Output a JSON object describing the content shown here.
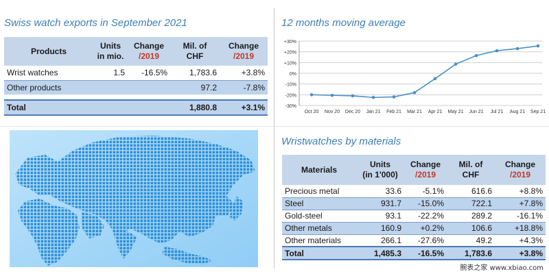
{
  "exports": {
    "title": "Swiss watch exports in September 2021",
    "headers": {
      "products": "Products",
      "units_l1": "Units",
      "units_l2": "in mio.",
      "change_l1": "Change",
      "change_l2": "/2019",
      "mil_l1": "Mil. of",
      "mil_l2": "CHF",
      "change2_l1": "Change",
      "change2_l2": "/2019"
    },
    "rows": [
      {
        "label": "Wrist watches",
        "units": "1.5",
        "change": "-16.5%",
        "chf": "1,783.6",
        "change2": "+3.8%"
      },
      {
        "label": "Other products",
        "units": "",
        "change": "",
        "chf": "97.2",
        "change2": "-7.8%"
      }
    ],
    "total": {
      "label": "Total",
      "chf": "1,880.8",
      "change2": "+3.1%"
    }
  },
  "moving_average": {
    "title": "12 months moving average"
  },
  "materials": {
    "title": "Wristwatches by materials",
    "headers": {
      "materials": "Materials",
      "units_l1": "Units",
      "units_l2": "(in 1'000)",
      "change_l1": "Change",
      "change_l2": "/2019",
      "mil_l1": "Mil. of",
      "mil_l2": "CHF",
      "change2_l1": "Change",
      "change2_l2": "/2019"
    },
    "rows": [
      {
        "label": "Precious metal",
        "units": "33.6",
        "change": "-5.1%",
        "chf": "616.6",
        "change2": "+8.8%"
      },
      {
        "label": "Steel",
        "units": "931.7",
        "change": "-15.0%",
        "chf": "722.1",
        "change2": "+7.8%"
      },
      {
        "label": "Gold-steel",
        "units": "93.1",
        "change": "-22.2%",
        "chf": "289.2",
        "change2": "-16.1%"
      },
      {
        "label": "Other metals",
        "units": "160.9",
        "change": "+0.2%",
        "chf": "106.6",
        "change2": "+18.8%"
      },
      {
        "label": "Other materials",
        "units": "266.1",
        "change": "-27.6%",
        "chf": "49.2",
        "change2": "+4.3%"
      }
    ],
    "total": {
      "label": "Total",
      "units": "1,485.3",
      "change": "-16.5%",
      "chf": "1,783.6",
      "change2": "+3.8%"
    }
  },
  "watermark": "腕表之家  www.xbiao.com",
  "colors": {
    "title_blue": "#3d7fb4",
    "line_blue": "#4a90c8",
    "header_bg": "#c5d6ea",
    "map_blue": "#2e8fd6"
  },
  "chart_data": {
    "type": "line",
    "x": [
      "Oct 20",
      "Nov 20",
      "Dec 20",
      "Jan 21",
      "Feb 21",
      "Mar 21",
      "Apr 21",
      "May 21",
      "Jun 21",
      "Jul 21",
      "Aug 21",
      "Sep 21"
    ],
    "series": [
      {
        "values": [
          -20,
          -20.5,
          -21,
          -22.5,
          -22,
          -18,
          -5,
          8.5,
          16.5,
          21,
          23,
          25.5
        ]
      }
    ],
    "yticks": [
      "+30%",
      "+20%",
      "+10%",
      "0%",
      "-10%",
      "-20%",
      "-30%"
    ],
    "ylim": [
      -30,
      30
    ],
    "grid": "horizontal",
    "title": "",
    "xlabel": "",
    "ylabel": ""
  }
}
